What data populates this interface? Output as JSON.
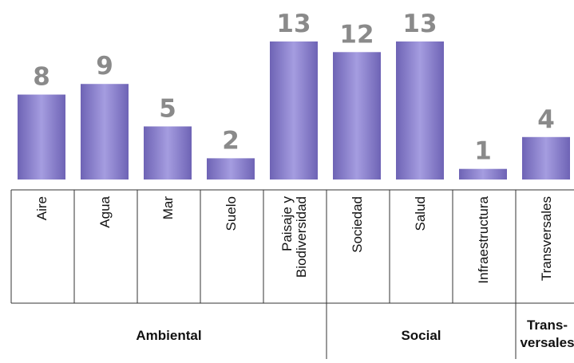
{
  "chart_data": {
    "type": "bar",
    "categories": [
      "Aire",
      "Agua",
      "Mar",
      "Suelo",
      "Paisaje y Biodiversidad",
      "Sociedad",
      "Salud",
      "Infraestructura",
      "Transversales"
    ],
    "category_lines": [
      [
        "Aire"
      ],
      [
        "Agua"
      ],
      [
        "Mar"
      ],
      [
        "Suelo"
      ],
      [
        "Paisaje y",
        "Biodiversidad"
      ],
      [
        "Sociedad"
      ],
      [
        "Salud"
      ],
      [
        "Infraestructura"
      ],
      [
        "Transversales"
      ]
    ],
    "values": [
      8,
      9,
      5,
      2,
      13,
      12,
      13,
      1,
      4
    ],
    "groups": [
      {
        "label": "Ambiental",
        "lines": [
          "Ambiental"
        ],
        "count": 5
      },
      {
        "label": "Social",
        "lines": [
          "Social"
        ],
        "count": 3
      },
      {
        "label": "Trans-versales",
        "lines": [
          "Trans-",
          "versales"
        ],
        "count": 1
      }
    ],
    "ylim": [
      0,
      13
    ],
    "bar_color": "#6e63b5",
    "bar_color_light": "#a59de0",
    "value_label_color": "#8a8a8a",
    "grid": false,
    "legend": "none"
  }
}
